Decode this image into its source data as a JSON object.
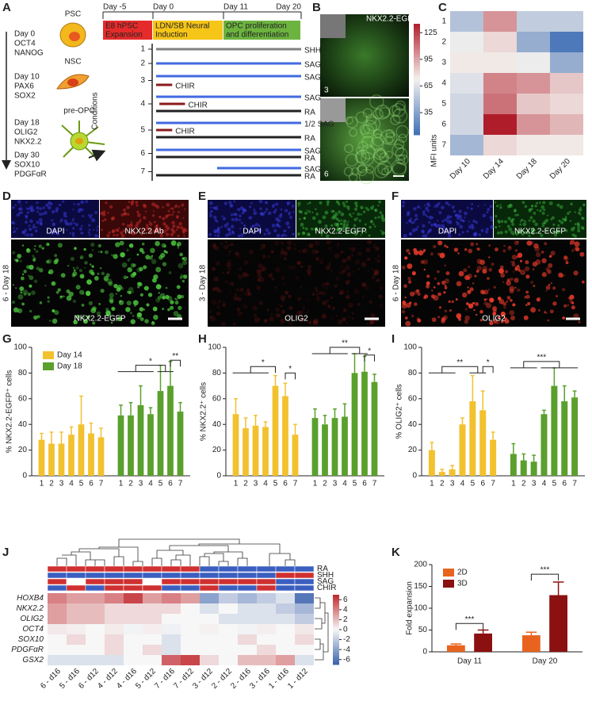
{
  "panel_letters": [
    "A",
    "B",
    "C",
    "D",
    "E",
    "F",
    "G",
    "H",
    "I",
    "J",
    "K"
  ],
  "panel_a": {
    "stages": [
      {
        "day": "Day 0",
        "markers": [
          "OCT4",
          "NANOG"
        ],
        "color": "#8b1a1a"
      },
      {
        "day": "Day 10",
        "markers": [
          "PAX6",
          "SOX2"
        ],
        "color": "#e0561a"
      },
      {
        "day": "Day 18",
        "markers": [
          "OLIG2",
          "NKX2.2"
        ],
        "color": "#8aa010"
      },
      {
        "day": "Day 30",
        "markers": [
          "SOX10",
          "PDGFαR"
        ],
        "color": "#5a6a10"
      }
    ],
    "cells": [
      "PSC",
      "NSC",
      "pre-OPC"
    ],
    "timeline": {
      "ticks": [
        {
          "value": -5,
          "label": "Day -5"
        },
        {
          "value": 0,
          "label": "Day 0"
        },
        {
          "value": 11,
          "label": "Day 11"
        },
        {
          "value": 20,
          "label": "Day 20"
        }
      ],
      "phases": [
        {
          "name": [
            "E8 hPSC",
            "Expansion"
          ],
          "from": -5,
          "to": 0,
          "color": "#e52b2b",
          "text_color": "#ffffff"
        },
        {
          "name": [
            "LDN/SB Neural",
            "Induction"
          ],
          "from": 0,
          "to": 11,
          "color": "#f5c518",
          "text_color": "#222222"
        },
        {
          "name": [
            "OPC proliferation",
            "and differentiation"
          ],
          "from": 11,
          "to": 20,
          "color": "#6cb33f",
          "text_color": "#ffffff"
        }
      ]
    },
    "conditions_label": "Conditions",
    "conditions": [
      {
        "id": "1",
        "treatments": [
          {
            "name": "SHH",
            "from": 0,
            "to": 20,
            "color": "#808080"
          }
        ]
      },
      {
        "id": "2",
        "treatments": [
          {
            "name": "SAG",
            "from": 0,
            "to": 20,
            "color": "#4169e1"
          }
        ]
      },
      {
        "id": "3",
        "treatments": [
          {
            "name": "SAG",
            "from": 0,
            "to": 20,
            "color": "#4169e1"
          },
          {
            "name": "CHIR",
            "from": 0,
            "to": 3,
            "color": "#8b1a1a"
          }
        ]
      },
      {
        "id": "4",
        "treatments": [
          {
            "name": "SAG",
            "from": 0,
            "to": 20,
            "color": "#4169e1"
          },
          {
            "name": "CHIR",
            "from": 1,
            "to": 5,
            "color": "#8b1a1a"
          },
          {
            "name": "RA",
            "from": 0,
            "to": 20,
            "color": "#222222"
          }
        ]
      },
      {
        "id": "5",
        "treatments": [
          {
            "name": "1/2 SAG",
            "from": 0,
            "to": 20,
            "color": "#4169e1"
          },
          {
            "name": "CHIR",
            "from": 0,
            "to": 3,
            "color": "#8b1a1a"
          },
          {
            "name": "RA",
            "from": 0,
            "to": 20,
            "color": "#222222"
          }
        ]
      },
      {
        "id": "6",
        "treatments": [
          {
            "name": "SAG",
            "from": 0,
            "to": 20,
            "color": "#4169e1"
          },
          {
            "name": "RA",
            "from": 0,
            "to": 20,
            "color": "#222222"
          }
        ]
      },
      {
        "id": "7",
        "treatments": [
          {
            "name": "SAG",
            "from": 10,
            "to": 20,
            "color": "#4169e1"
          },
          {
            "name": "RA",
            "from": 0,
            "to": 20,
            "color": "#222222"
          }
        ]
      }
    ]
  },
  "panel_b": {
    "label": "NKX2.2-EGFP",
    "images": [
      "3",
      "6"
    ]
  },
  "panel_d": {
    "side_label": "6 - Day 18",
    "insets": [
      "DAPI",
      "NKX2.2 Ab"
    ],
    "main": "NKX2.2-EGFP"
  },
  "panel_e": {
    "side_label": "3 - Day 18",
    "insets": [
      "DAPI",
      "NKX2.2-EGFP"
    ],
    "main": "OLIG2"
  },
  "panel_f": {
    "side_label": "6 - Day 18",
    "insets": [
      "DAPI",
      "NKX2.2-EGFP"
    ],
    "main": "OLIG2"
  },
  "chart_data": [
    {
      "type": "heatmap",
      "rows": [
        "1",
        "2",
        "3",
        "4",
        "5",
        "6",
        "7"
      ],
      "columns": [
        "Day 10",
        "Day 14",
        "Day 18",
        "Day 20"
      ],
      "values": [
        [
          50,
          100,
          55,
          55
        ],
        [
          70,
          80,
          40,
          15
        ],
        [
          75,
          75,
          70,
          40
        ],
        [
          65,
          105,
          100,
          85
        ],
        [
          60,
          110,
          85,
          80
        ],
        [
          60,
          135,
          100,
          90
        ],
        [
          45,
          80,
          75,
          75
        ]
      ],
      "zlabel": "MFI units",
      "clim": [
        10,
        135
      ],
      "cticks": [
        125,
        95,
        65,
        35
      ],
      "colors": [
        "#3f6fb5",
        "#f4f1ee",
        "#b01d2a"
      ]
    },
    {
      "type": "clustered-bar",
      "ylabel": "% NKX2.2-EGFP⁺ cells",
      "categories": [
        "1",
        "2",
        "3",
        "4",
        "5",
        "6",
        "7"
      ],
      "series": [
        {
          "name": "Day 14",
          "color": "#f2c12e",
          "values": [
            28,
            25,
            25,
            32,
            40,
            33,
            30
          ],
          "errors": [
            5,
            9,
            9,
            6,
            22,
            8,
            7
          ]
        },
        {
          "name": "Day 18",
          "color": "#5aa02c",
          "values": [
            47,
            47,
            55,
            48,
            66,
            70,
            50
          ],
          "errors": [
            8,
            10,
            15,
            5,
            20,
            19,
            7
          ]
        }
      ],
      "ylim": [
        0,
        100
      ],
      "yticks": [
        0,
        20,
        40,
        60,
        80,
        100
      ],
      "legend": "upper-left",
      "significance": [
        "*",
        "**"
      ]
    },
    {
      "type": "clustered-bar",
      "ylabel": "% NKX2.2⁺ cells",
      "categories": [
        "1",
        "2",
        "3",
        "4",
        "5",
        "6",
        "7"
      ],
      "series": [
        {
          "color": "#f2c12e",
          "values": [
            48,
            37,
            39,
            38,
            70,
            62,
            32
          ],
          "errors": [
            12,
            8,
            8,
            4,
            8,
            10,
            8
          ]
        },
        {
          "color": "#5aa02c",
          "values": [
            45,
            40,
            45,
            46,
            80,
            81,
            73
          ],
          "errors": [
            7,
            7,
            7,
            10,
            15,
            12,
            6
          ]
        }
      ],
      "ylim": [
        0,
        100
      ],
      "yticks": [
        0,
        20,
        40,
        60,
        80,
        100
      ],
      "significance": [
        "*",
        "*",
        "**",
        "*"
      ]
    },
    {
      "type": "clustered-bar",
      "ylabel": "% OLIG2⁺ cells",
      "categories": [
        "1",
        "2",
        "3",
        "4",
        "5",
        "6",
        "7"
      ],
      "series": [
        {
          "color": "#f2c12e",
          "values": [
            20,
            3,
            5,
            40,
            58,
            51,
            28
          ],
          "errors": [
            6,
            2,
            3,
            5,
            20,
            15,
            6
          ]
        },
        {
          "color": "#5aa02c",
          "values": [
            17,
            12,
            11,
            48,
            70,
            58,
            61
          ],
          "errors": [
            8,
            5,
            5,
            3,
            14,
            12,
            5
          ]
        }
      ],
      "ylim": [
        0,
        100
      ],
      "yticks": [
        0,
        20,
        40,
        60,
        80,
        100
      ],
      "significance": [
        "**",
        "*",
        "***"
      ]
    },
    {
      "type": "heatmap",
      "rows": [
        "HOXB4",
        "NKX2.2",
        "OLIG2",
        "OCT4",
        "SOX10",
        "PDGFαR",
        "GSX2"
      ],
      "columns": [
        "6 - d16",
        "5 - d16",
        "6 - d12",
        "4 - d12",
        "4 - d16",
        "5 - d12",
        "7 - d16",
        "7 - d12",
        "3 - d12",
        "2 - d12",
        "2 - d16",
        "3 - d16",
        "1 - d16",
        "1 - d12"
      ],
      "values": [
        [
          4,
          3,
          3,
          4,
          6,
          3,
          4,
          3,
          -4,
          -2,
          -3,
          -2,
          -1,
          -6
        ],
        [
          3,
          2,
          2,
          1,
          1,
          1,
          1,
          0,
          -1,
          0,
          -1,
          -1,
          -2,
          -3
        ],
        [
          3,
          2,
          2,
          1,
          1,
          1,
          0,
          0,
          0,
          -1,
          -1,
          -1,
          -1,
          -2
        ],
        [
          0.5,
          0.3,
          0,
          0.4,
          -0.2,
          0.3,
          -0.3,
          0,
          0.2,
          0,
          -0.2,
          0.3,
          0,
          0.5
        ],
        [
          0,
          1,
          0,
          1,
          0,
          0,
          -1,
          0,
          0,
          0,
          1,
          0,
          0,
          1
        ],
        [
          0,
          0,
          0,
          1,
          0,
          1,
          -1,
          0,
          0,
          0,
          0,
          1,
          0,
          0
        ],
        [
          -1,
          -1,
          -1,
          -1,
          0,
          0,
          5,
          6,
          1,
          0,
          2,
          2,
          3,
          -1
        ]
      ],
      "annotations": [
        {
          "name": "RA",
          "values": [
            1,
            1,
            1,
            1,
            1,
            1,
            1,
            1,
            0,
            0,
            0,
            0,
            0,
            0
          ]
        },
        {
          "name": "SHH",
          "values": [
            0,
            0,
            0,
            0,
            0,
            0,
            0,
            0,
            0,
            0,
            0,
            0,
            1,
            1
          ]
        },
        {
          "name": "SAG",
          "values": [
            1,
            null,
            1,
            1,
            1,
            null,
            1,
            1,
            1,
            1,
            1,
            1,
            0,
            0
          ]
        },
        {
          "name": "CHIR",
          "values": [
            0,
            1,
            0,
            1,
            1,
            1,
            0,
            0,
            1,
            0,
            0,
            1,
            0,
            0
          ]
        }
      ],
      "annotation_colors": [
        "#3b5fc0",
        "#d03030"
      ],
      "clim": [
        -7,
        7
      ],
      "cticks": [
        6,
        4,
        2,
        0,
        -2,
        -4,
        -6
      ],
      "colors": [
        "#3a62ad",
        "#f7f7f7",
        "#c0272d"
      ]
    },
    {
      "type": "grouped-bar",
      "ylabel": "Fold expansion",
      "categories": [
        "Day 11",
        "Day 20"
      ],
      "series": [
        {
          "name": "2D",
          "color": "#e8641e",
          "values": [
            15,
            38
          ],
          "errors": [
            3,
            7
          ]
        },
        {
          "name": "3D",
          "color": "#8b1010",
          "values": [
            42,
            130
          ],
          "errors": [
            8,
            30
          ]
        }
      ],
      "ylim": [
        0,
        200
      ],
      "yticks": [
        0,
        50,
        100,
        150,
        200
      ],
      "legend": "upper-left",
      "significance": [
        "***",
        "***"
      ]
    }
  ]
}
